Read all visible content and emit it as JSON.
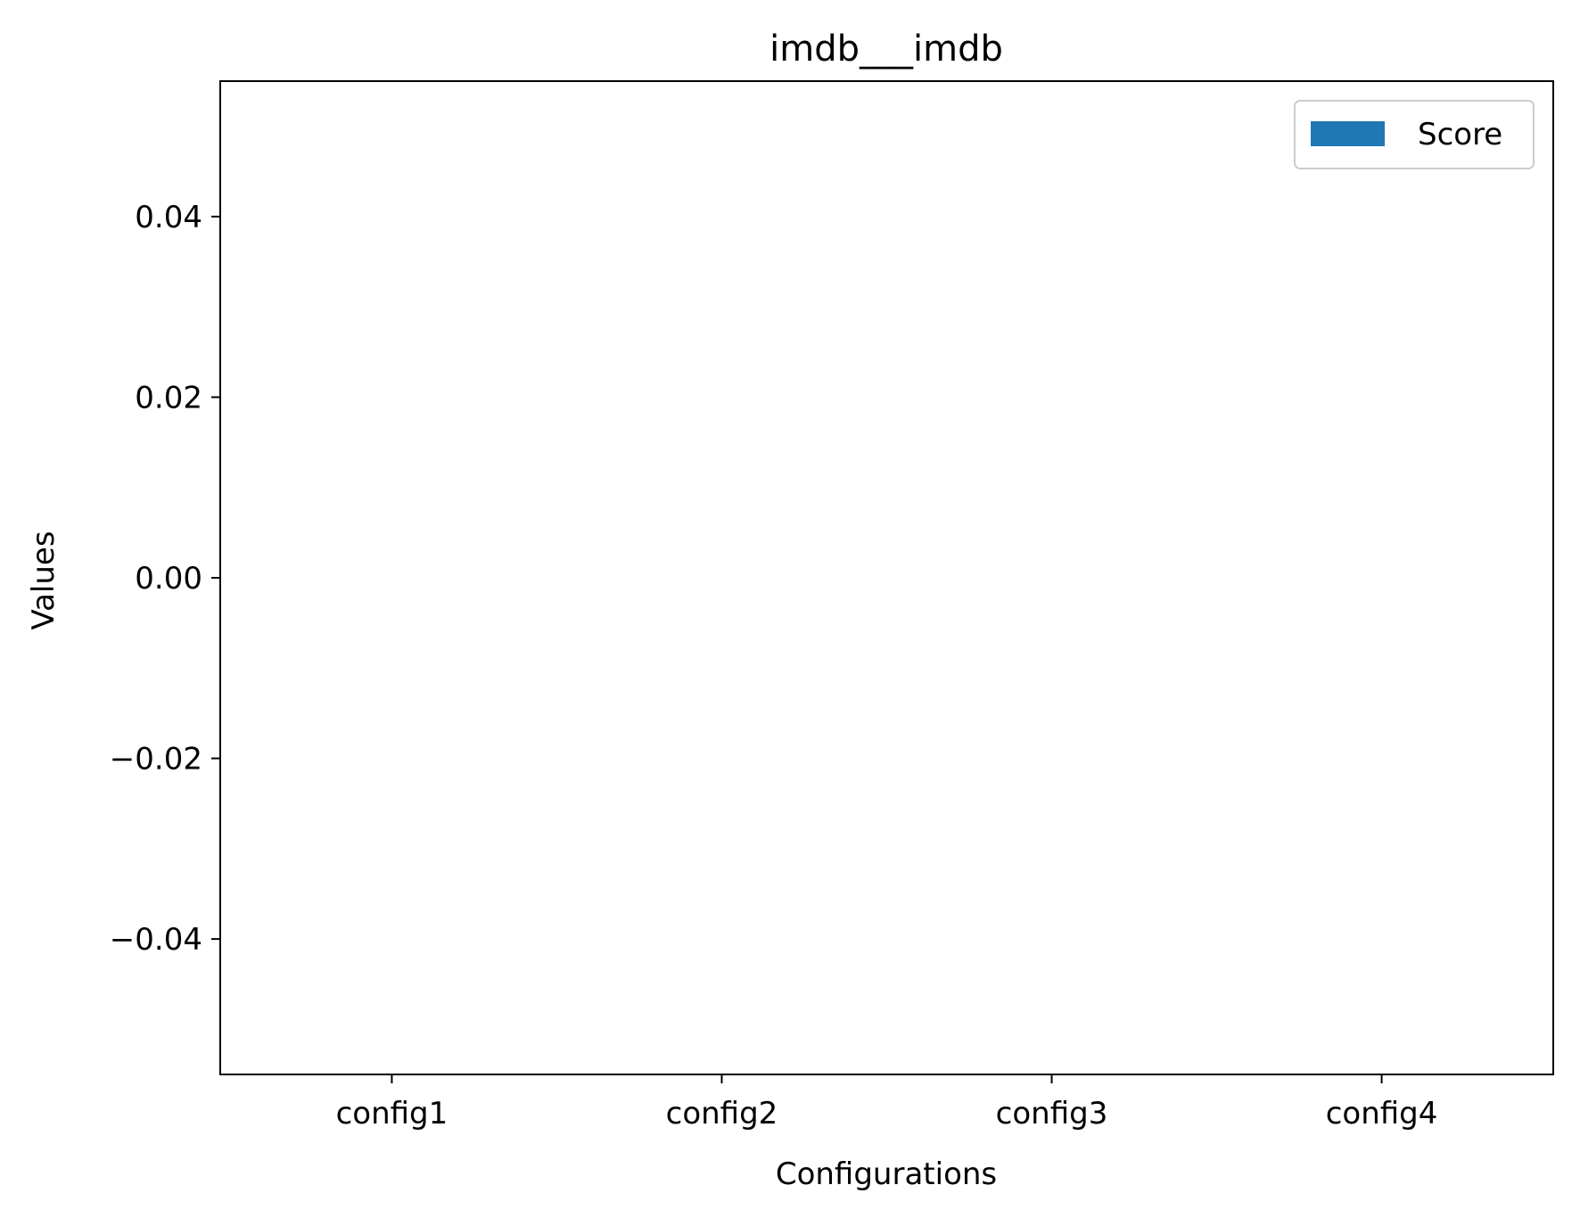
{
  "chart_data": {
    "type": "bar",
    "title": "imdb___imdb",
    "xlabel": "Configurations",
    "ylabel": "Values",
    "categories": [
      "config1",
      "config2",
      "config3",
      "config4"
    ],
    "series": [
      {
        "name": "Score",
        "values": [
          0,
          0,
          0,
          0
        ]
      }
    ],
    "ylim": [
      -0.055,
      0.055
    ],
    "yticks": [
      -0.04,
      -0.02,
      0.0,
      0.02,
      0.04
    ],
    "ytick_labels": [
      "−0.04",
      "−0.02",
      "0.00",
      "0.02",
      "0.04"
    ],
    "grid": false,
    "legend_position": "top-right",
    "colors": {
      "Score": "#1f77b4"
    }
  }
}
